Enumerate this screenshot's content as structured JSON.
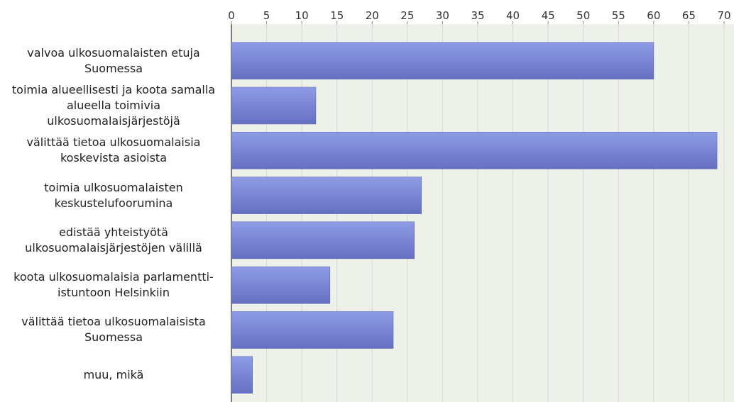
{
  "chart_data": {
    "type": "bar",
    "orientation": "horizontal",
    "categories": [
      "valvoa ulkosuomalaisten etuja Suomessa",
      "toimia alueellisesti ja koota samalla alueella toimivia ulkosuomalaisjärjestöjä",
      "välittää tietoa ulkosuomalaisia koskevista asioista",
      "toimia ulkosuomalaisten keskustelufoorumina",
      "edistää yhteistyötä ulkosuomalaisjärjestöjen välillä",
      "koota ulkosuomalaisia parlamentti-istuntoon Helsinkiin",
      "välittää tietoa ulkosuomalaisista Suomessa",
      "muu, mikä"
    ],
    "values": [
      60,
      12,
      69,
      27,
      26,
      14,
      23,
      3
    ],
    "color": "#7f8dd8",
    "xlim": [
      0,
      70
    ],
    "xticks": [
      0,
      5,
      10,
      15,
      20,
      25,
      30,
      35,
      40,
      45,
      50,
      55,
      60,
      65,
      70
    ],
    "grid": true
  }
}
